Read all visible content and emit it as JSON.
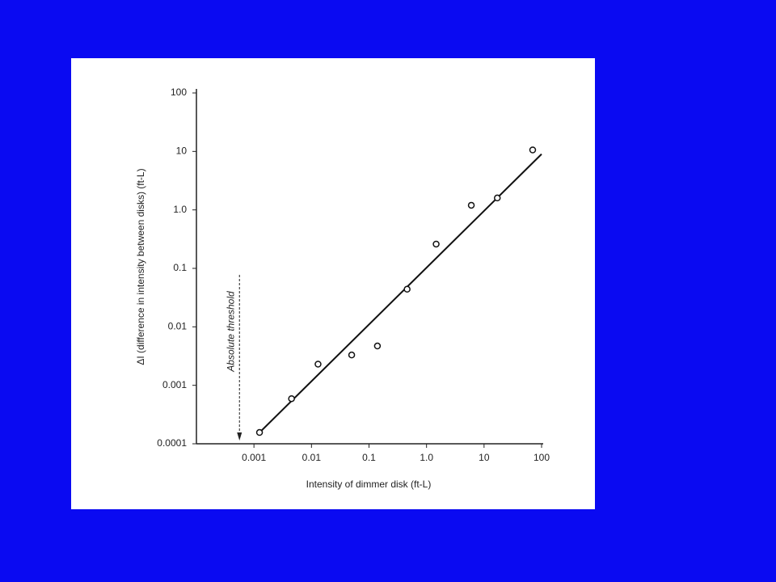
{
  "chart_data": {
    "type": "scatter",
    "xlabel": "Intensity of dimmer disk (ft-L)",
    "ylabel": "ΔI (difference in intensity between disks) (ft-L)",
    "xscale": "log",
    "yscale": "log",
    "xlim": [
      0.0001,
      100
    ],
    "ylim": [
      0.0001,
      100
    ],
    "xticks": [
      0.001,
      0.01,
      0.1,
      {
        "value": 1,
        "label": "1.0"
      },
      10,
      100
    ],
    "yticks": [
      0.0001,
      0.001,
      0.01,
      0.1,
      {
        "value": 1,
        "label": "1.0"
      },
      10,
      100
    ],
    "color": "#111111",
    "points": {
      "x": [
        0.00125,
        0.0045,
        0.013,
        0.05,
        0.14,
        0.46,
        1.47,
        6.0,
        17,
        70
      ],
      "y": [
        0.000156,
        0.00059,
        0.0023,
        0.0033,
        0.0047,
        0.044,
        0.26,
        1.2,
        1.6,
        10.6
      ]
    },
    "fit_line": {
      "x": [
        0.00117,
        100
      ],
      "y": [
        0.000146,
        9
      ]
    },
    "threshold": {
      "label": "Absolute threshold",
      "x": 0.00056
    }
  }
}
